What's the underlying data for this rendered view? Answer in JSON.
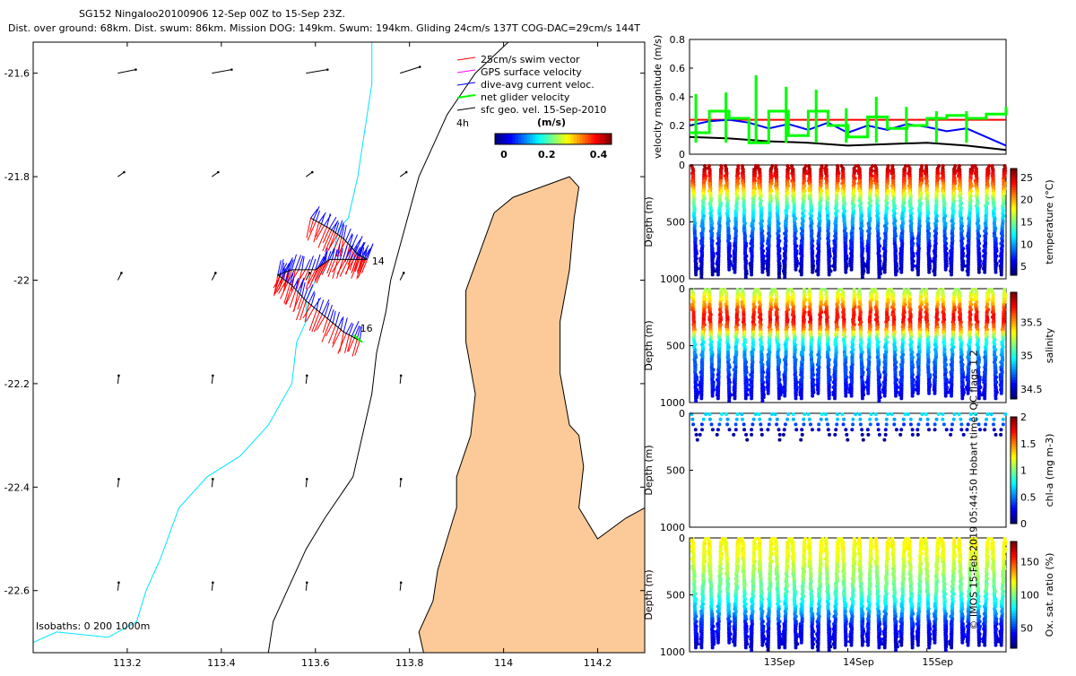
{
  "header": {
    "title_line1": "SG152 Ningaloo20100906 12-Sep 00Z to 15-Sep 23Z.",
    "title_line2": "Dist. over ground: 68km. Dist. swum: 86km. Mission DOG: 149km. Swum: 194km. Gliding 24cm/s 137T COG-DAC=29cm/s 144T"
  },
  "credit": "© IMOS 15-Feb-2019 05:44:50 Hobart time. QC flags 1 2",
  "colors": {
    "land": "#fcca98",
    "coast_outline": "#000000",
    "isobath_200": "#00e5ff",
    "isobath_1000": "#000000",
    "swim": "#ff0000",
    "gps": "#ff00ff",
    "dac": "#0000ff",
    "net": "#00ff00",
    "geo": "#000000"
  },
  "chart_data": [
    {
      "type": "map",
      "xlim": [
        113.0,
        114.3
      ],
      "ylim": [
        -22.72,
        -21.54
      ],
      "xticks": [
        "113.2",
        "113.4",
        "113.6",
        "113.8",
        "114",
        "114.2"
      ],
      "xtick_values": [
        113.2,
        113.4,
        113.6,
        113.8,
        114.0,
        114.2
      ],
      "yticks": [
        "-21.6",
        "-21.8",
        "-22",
        "-22.2",
        "-22.4",
        "-22.6"
      ],
      "ytick_values": [
        -21.6,
        -21.8,
        -22.0,
        -22.2,
        -22.4,
        -22.6
      ],
      "legend": [
        {
          "label": "25cm/s swim vector",
          "color": "#ff0000"
        },
        {
          "label": "GPS surface velocity",
          "color": "#ff00ff"
        },
        {
          "label": "dive-avg current veloc.",
          "color": "#0000ff"
        },
        {
          "label": "net glider velocity",
          "color": "#00ff00"
        },
        {
          "label": "sfc geo. vel. 15-Sep-2010",
          "color": "#000000"
        }
      ],
      "legend_note": "4h",
      "colorbar": {
        "label": "(m/s)",
        "ticks": [
          "0",
          "0.2",
          "0.4"
        ],
        "range": [
          0,
          0.45
        ]
      },
      "isobaths_label": "Isobaths: 0   200  1000m",
      "annotations": [
        {
          "text": "14",
          "lon": 113.72,
          "lat": -21.97
        },
        {
          "text": "16",
          "lon": 113.695,
          "lat": -22.1
        }
      ],
      "track": [
        [
          113.59,
          -21.88
        ],
        [
          113.63,
          -21.9
        ],
        [
          113.66,
          -21.92
        ],
        [
          113.69,
          -21.95
        ],
        [
          113.71,
          -21.96
        ],
        [
          113.67,
          -21.96
        ],
        [
          113.63,
          -21.96
        ],
        [
          113.6,
          -21.98
        ],
        [
          113.55,
          -21.98
        ],
        [
          113.52,
          -21.99
        ],
        [
          113.55,
          -22.01
        ],
        [
          113.58,
          -22.04
        ],
        [
          113.62,
          -22.07
        ],
        [
          113.66,
          -22.1
        ],
        [
          113.7,
          -22.12
        ]
      ],
      "geo_vector_grid": {
        "lons": [
          113.18,
          113.38,
          113.58,
          113.78
        ],
        "lats": [
          -21.6,
          -21.8,
          -22.0,
          -22.2,
          -22.4,
          -22.6
        ]
      }
    },
    {
      "type": "line",
      "ylabel": "velocity magnitude (m/s)",
      "ylim": [
        0,
        0.8
      ],
      "yticks": [
        "0",
        "0.2",
        "0.4",
        "0.6",
        "0.8"
      ],
      "ytick_values": [
        0,
        0.2,
        0.4,
        0.6,
        0.8
      ],
      "x_days": [
        12,
        16
      ],
      "series": [
        {
          "name": "swim",
          "color": "#ff0000",
          "x": [
            12.0,
            16.0
          ],
          "values": [
            0.24,
            0.24
          ]
        },
        {
          "name": "dive-avg",
          "color": "#0000ff",
          "x": [
            12.0,
            12.25,
            12.5,
            12.75,
            13.0,
            13.25,
            13.5,
            13.75,
            14.0,
            14.25,
            14.5,
            14.75,
            15.0,
            15.25,
            15.5,
            15.75,
            16.0
          ],
          "values": [
            0.2,
            0.23,
            0.24,
            0.22,
            0.18,
            0.21,
            0.17,
            0.22,
            0.15,
            0.2,
            0.17,
            0.21,
            0.19,
            0.16,
            0.18,
            0.12,
            0.06
          ]
        },
        {
          "name": "geo",
          "color": "#000000",
          "x": [
            12.0,
            12.5,
            13.0,
            13.5,
            14.0,
            14.5,
            15.0,
            15.5,
            16.0
          ],
          "values": [
            0.12,
            0.11,
            0.09,
            0.08,
            0.06,
            0.07,
            0.08,
            0.06,
            0.03
          ]
        },
        {
          "name": "net",
          "color": "#00ff00",
          "x": [
            12.0,
            12.25,
            12.5,
            12.75,
            13.0,
            13.25,
            13.5,
            13.75,
            14.0,
            14.25,
            14.5,
            14.75,
            15.0,
            15.25,
            15.5,
            15.75,
            16.0
          ],
          "values": [
            0.15,
            0.3,
            0.25,
            0.08,
            0.3,
            0.13,
            0.3,
            0.2,
            0.12,
            0.26,
            0.18,
            0.2,
            0.25,
            0.27,
            0.25,
            0.28,
            0.33
          ],
          "spikes": [
            0.42,
            0.43,
            0.55,
            0.47,
            0.45,
            0.32,
            0.4,
            0.33,
            0.3,
            0.3
          ]
        }
      ]
    },
    {
      "type": "heatmap",
      "variable": "temperature",
      "ylabel": "Depth (m)",
      "cbar_label": "temperature (°C)",
      "cbar_ticks": [
        "25",
        "20",
        "15",
        "10",
        "5"
      ],
      "cbar_tick_values": [
        25,
        20,
        15,
        10,
        5
      ],
      "cbar_range": [
        3,
        27
      ],
      "yticks": [
        "0",
        "500",
        "1000"
      ],
      "ylim": [
        0,
        1000
      ],
      "n_dives": 38,
      "max_depth_m": [
        900,
        960
      ],
      "profile": [
        [
          0,
          26
        ],
        [
          60,
          25
        ],
        [
          120,
          23
        ],
        [
          200,
          20
        ],
        [
          300,
          15
        ],
        [
          450,
          11
        ],
        [
          600,
          8
        ],
        [
          750,
          6
        ],
        [
          950,
          4
        ]
      ]
    },
    {
      "type": "heatmap",
      "variable": "salinity",
      "ylabel": "Depth (m)",
      "cbar_label": "salinity",
      "cbar_ticks": [
        "35.5",
        "35",
        "34.5"
      ],
      "cbar_tick_values": [
        35.5,
        35.0,
        34.5
      ],
      "cbar_range": [
        34.35,
        35.95
      ],
      "yticks": [
        "0",
        "500",
        "1000"
      ],
      "ylim": [
        0,
        1000
      ],
      "n_dives": 38,
      "max_depth_m": [
        900,
        960
      ],
      "profile": [
        [
          0,
          35.2
        ],
        [
          100,
          35.4
        ],
        [
          200,
          35.7
        ],
        [
          280,
          35.75
        ],
        [
          360,
          35.5
        ],
        [
          450,
          35.0
        ],
        [
          600,
          34.75
        ],
        [
          800,
          34.6
        ],
        [
          950,
          34.5
        ]
      ]
    },
    {
      "type": "heatmap",
      "variable": "chl-a",
      "ylabel": "Depth (m)",
      "cbar_label": "chl-a (mg m-3)",
      "cbar_ticks": [
        "2",
        "1.5",
        "1",
        "0.5",
        "0"
      ],
      "cbar_tick_values": [
        2,
        1.5,
        1,
        0.5,
        0
      ],
      "cbar_range": [
        0,
        2
      ],
      "yticks": [
        "0",
        "500",
        "1000"
      ],
      "ylim": [
        0,
        1000
      ],
      "n_dives": 38,
      "max_depth_m": [
        150,
        260
      ],
      "profile": [
        [
          0,
          0.7
        ],
        [
          60,
          0.6
        ],
        [
          150,
          0.1
        ],
        [
          260,
          0.02
        ]
      ]
    },
    {
      "type": "heatmap",
      "variable": "oxygen",
      "ylabel": "Depth (m)",
      "cbar_label": "Ox. sat. ratio (%)",
      "cbar_ticks": [
        "150",
        "100",
        "50"
      ],
      "cbar_tick_values": [
        150,
        100,
        50
      ],
      "cbar_range": [
        20,
        180
      ],
      "yticks": [
        "0",
        "500",
        "1000"
      ],
      "ylim": [
        0,
        1000
      ],
      "n_dives": 38,
      "max_depth_m": [
        900,
        960
      ],
      "profile": [
        [
          0,
          120
        ],
        [
          150,
          118
        ],
        [
          300,
          105
        ],
        [
          450,
          95
        ],
        [
          600,
          75
        ],
        [
          750,
          45
        ],
        [
          950,
          30
        ]
      ],
      "xtick_labels": [
        "13Sep",
        "14Sep",
        "15Sep"
      ],
      "xtick_days": [
        13,
        14,
        15
      ]
    }
  ]
}
